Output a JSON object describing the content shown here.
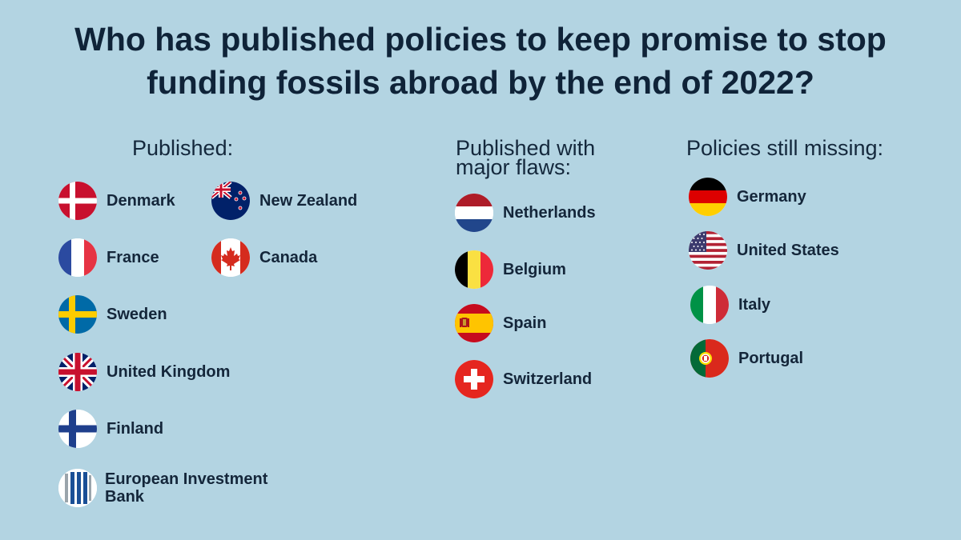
{
  "title": {
    "line1": "Who has published policies to keep promise to stop",
    "line2": "funding fossils abroad by the end of 2022?"
  },
  "columns": {
    "published": {
      "heading": "Published:",
      "items": [
        {
          "label": "Denmark",
          "flag": "denmark-flag"
        },
        {
          "label": "New Zealand",
          "flag": "new-zealand-flag"
        },
        {
          "label": "France",
          "flag": "france-flag"
        },
        {
          "label": "Canada",
          "flag": "canada-flag"
        },
        {
          "label": "Sweden",
          "flag": "sweden-flag"
        },
        {
          "label": "United Kingdom",
          "flag": "united-kingdom-flag"
        },
        {
          "label": "Finland",
          "flag": "finland-flag"
        },
        {
          "label": "European Investment Bank",
          "flag": "eib-logo"
        }
      ]
    },
    "flawed": {
      "heading_line1": "Published with",
      "heading_line2": "major flaws:",
      "items": [
        {
          "label": "Netherlands",
          "flag": "netherlands-flag"
        },
        {
          "label": "Belgium",
          "flag": "belgium-flag"
        },
        {
          "label": "Spain",
          "flag": "spain-flag"
        },
        {
          "label": "Switzerland",
          "flag": "switzerland-flag"
        }
      ]
    },
    "missing": {
      "heading": "Policies still missing:",
      "items": [
        {
          "label": "Germany",
          "flag": "germany-flag"
        },
        {
          "label": "United States",
          "flag": "united-states-flag"
        },
        {
          "label": "Italy",
          "flag": "italy-flag"
        },
        {
          "label": "Portugal",
          "flag": "portugal-flag"
        }
      ]
    }
  }
}
